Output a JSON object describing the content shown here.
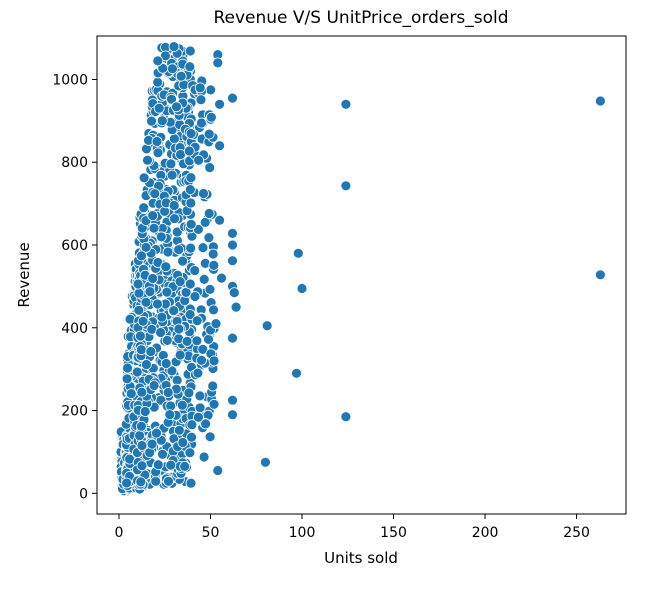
{
  "chart_data": {
    "type": "scatter",
    "title": "Revenue V/S UnitPrice_orders_sold",
    "xlabel": "Units sold",
    "ylabel": "Revenue",
    "xlim": [
      -12,
      277
    ],
    "ylim": [
      -50,
      1105
    ],
    "xticks": [
      0,
      50,
      100,
      150,
      200,
      250
    ],
    "yticks": [
      0,
      200,
      400,
      600,
      800,
      1000
    ],
    "xtick_labels": [
      "0",
      "50",
      "100",
      "150",
      "200",
      "250"
    ],
    "ytick_labels": [
      "0",
      "200",
      "400",
      "600",
      "800",
      "1000"
    ],
    "grid": false,
    "marker_color": "#1f77b4",
    "marker_edge_color": "#ffffff",
    "outliers": {
      "x": [
        263,
        263,
        124,
        124,
        124,
        98,
        100,
        97,
        81,
        80,
        62,
        62,
        62,
        62,
        63,
        64,
        62,
        62,
        62,
        62,
        54,
        54,
        55,
        55,
        55,
        56,
        53,
        52,
        52,
        54
      ],
      "y": [
        948,
        528,
        940,
        743,
        185,
        580,
        495,
        290,
        405,
        75,
        955,
        628,
        562,
        500,
        485,
        450,
        375,
        225,
        190,
        600,
        1060,
        1040,
        940,
        840,
        660,
        520,
        410,
        320,
        215,
        55
      ]
    },
    "clusters": [
      {
        "x_min": 1,
        "x_max": 6,
        "y_min": 5,
        "y_max": 150,
        "count": 150
      },
      {
        "x_min": 4,
        "x_max": 14,
        "y_min": 10,
        "y_max": 560,
        "count": 320
      },
      {
        "x_min": 10,
        "x_max": 40,
        "y_min": 20,
        "y_max": 1080,
        "count": 700
      },
      {
        "x_min": 38,
        "x_max": 52,
        "y_min": 85,
        "y_max": 1000,
        "count": 110
      }
    ]
  }
}
